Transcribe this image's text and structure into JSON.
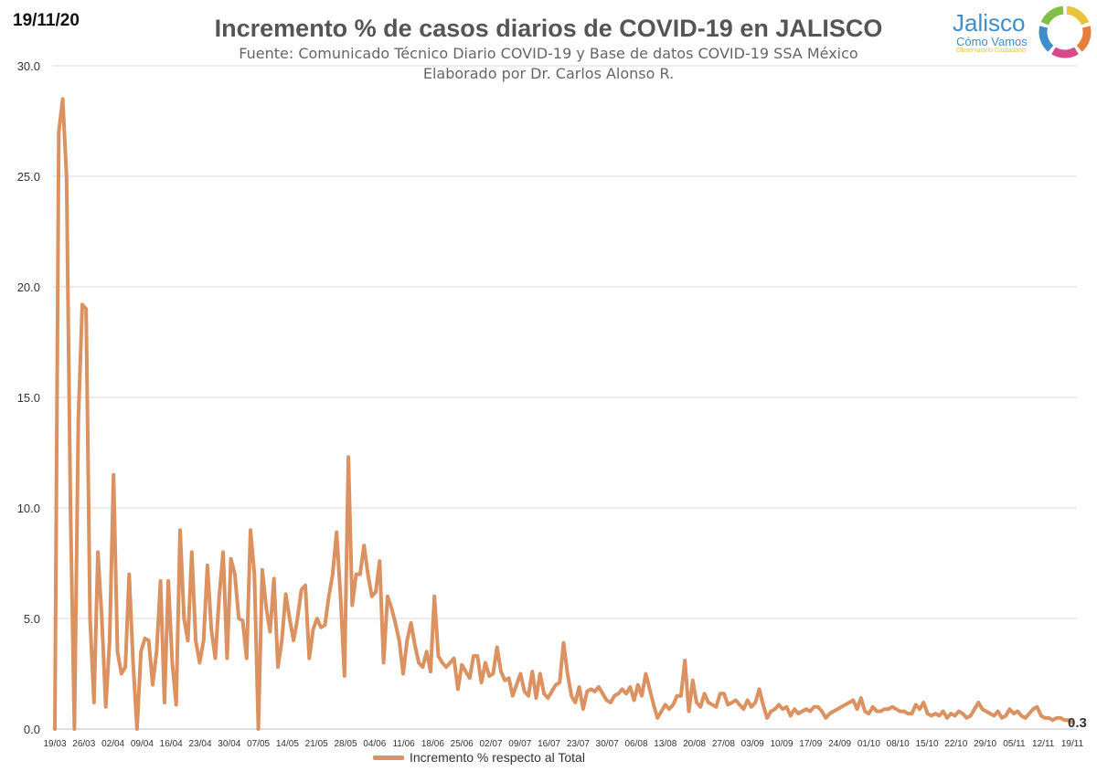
{
  "header": {
    "date": "19/11/20",
    "title": "Incremento % de casos diarios de COVID-19 en JALISCO",
    "subtitle1": "Fuente: Comunicado Técnico Diario COVID-19 y Base de datos COVID-19 SSA México",
    "subtitle2": "Elaborado por Dr. Carlos Alonso R."
  },
  "logo": {
    "name": "Jalisco",
    "line2": "Cómo Vamos",
    "line3": "Observatorio Ciudadano",
    "colors": [
      "#e8c33c",
      "#e87d3c",
      "#d94a8a",
      "#3e8fc9",
      "#7fbf4a"
    ]
  },
  "colors": {
    "line": "#dc9161",
    "grid": "#d9d9d9",
    "axis": "#bfbfbf"
  },
  "chart_data": {
    "type": "line",
    "title": "Incremento % de casos diarios de COVID-19 en JALISCO",
    "xlabel": "",
    "ylabel": "",
    "ylim": [
      0,
      30
    ],
    "yticks": [
      "0.0",
      "5.0",
      "10.0",
      "15.0",
      "20.0",
      "25.0",
      "30.0"
    ],
    "xticks": [
      "19/03",
      "26/03",
      "02/04",
      "09/04",
      "16/04",
      "23/04",
      "30/04",
      "07/05",
      "14/05",
      "21/05",
      "28/05",
      "04/06",
      "11/06",
      "18/06",
      "25/06",
      "02/07",
      "09/07",
      "16/07",
      "23/07",
      "30/07",
      "06/08",
      "13/08",
      "20/08",
      "27/08",
      "03/09",
      "10/09",
      "17/09",
      "24/09",
      "01/10",
      "08/10",
      "15/10",
      "22/10",
      "29/10",
      "05/11",
      "12/11",
      "19/11"
    ],
    "legend": {
      "position": "bottom",
      "entries": [
        "Incremento % respecto al Total"
      ]
    },
    "end_label": "0.3",
    "series": [
      {
        "name": "Incremento % respecto al Total",
        "values": [
          0,
          27,
          28.5,
          25,
          10,
          0,
          14,
          19.2,
          19,
          5,
          1.2,
          8,
          5,
          1,
          4,
          11.5,
          3.5,
          2.5,
          2.8,
          7,
          3,
          0,
          3.5,
          4.1,
          4,
          2,
          3.5,
          6.7,
          1.2,
          6.7,
          3,
          1.1,
          9,
          5,
          4,
          8,
          4,
          3,
          4,
          7.4,
          4.5,
          3.2,
          6,
          8,
          3.2,
          7.7,
          7,
          5,
          4.9,
          3.2,
          9,
          7,
          0,
          7.2,
          5.5,
          4.4,
          6.8,
          2.8,
          4,
          6.1,
          5,
          4,
          5,
          6.3,
          6.5,
          3.2,
          4.5,
          5,
          4.6,
          4.7,
          6,
          7,
          8.9,
          6,
          2.4,
          12.3,
          5.6,
          7,
          7,
          8.3,
          7,
          6,
          6.2,
          7.6,
          3,
          6,
          5.5,
          4.8,
          4,
          2.5,
          4,
          4.8,
          3.8,
          3,
          2.8,
          3.5,
          2.6,
          6,
          3.3,
          3,
          2.8,
          3,
          3.2,
          1.8,
          2.9,
          2.6,
          2.3,
          3.3,
          3.3,
          2.1,
          3,
          2.4,
          2.5,
          3.7,
          2.6,
          2.2,
          2.3,
          1.5,
          2,
          2.5,
          1.7,
          1.5,
          2.6,
          1.4,
          2.5,
          1.6,
          1.4,
          1.7,
          2,
          2.1,
          3.9,
          2.5,
          1.5,
          1.2,
          1.9,
          0.9,
          1.7,
          1.8,
          1.7,
          1.9,
          1.6,
          1.3,
          1.2,
          1.5,
          1.6,
          1.8,
          1.6,
          1.9,
          1.3,
          2,
          1.5,
          2.5,
          1.8,
          1.1,
          0.5,
          0.8,
          1.1,
          0.9,
          1.1,
          1.5,
          1.5,
          3.1,
          0.8,
          2.2,
          1.2,
          1,
          1.6,
          1.2,
          1.1,
          1,
          1.6,
          1.6,
          1.1,
          1.2,
          1.3,
          1.1,
          0.9,
          1.3,
          1,
          1.2,
          1.8,
          1.1,
          0.5,
          0.8,
          0.9,
          1.1,
          0.9,
          1,
          0.6,
          0.9,
          0.7,
          0.8,
          0.9,
          0.8,
          1,
          1,
          0.8,
          0.5,
          0.7,
          0.8,
          0.9,
          1,
          1.1,
          1.2,
          1.3,
          0.9,
          1.4,
          0.8,
          0.7,
          1,
          0.8,
          0.8,
          0.9,
          0.9,
          1,
          0.9,
          0.8,
          0.8,
          0.7,
          0.7,
          1.1,
          0.9,
          1.2,
          0.7,
          0.6,
          0.7,
          0.6,
          0.8,
          0.5,
          0.7,
          0.6,
          0.8,
          0.7,
          0.5,
          0.6,
          0.9,
          1.2,
          0.9,
          0.8,
          0.7,
          0.6,
          0.8,
          0.5,
          0.6,
          0.9,
          0.7,
          0.8,
          0.6,
          0.5,
          0.7,
          0.9,
          1,
          0.6,
          0.5,
          0.5,
          0.4,
          0.5,
          0.5,
          0.4,
          0.4,
          0.3
        ]
      }
    ]
  }
}
